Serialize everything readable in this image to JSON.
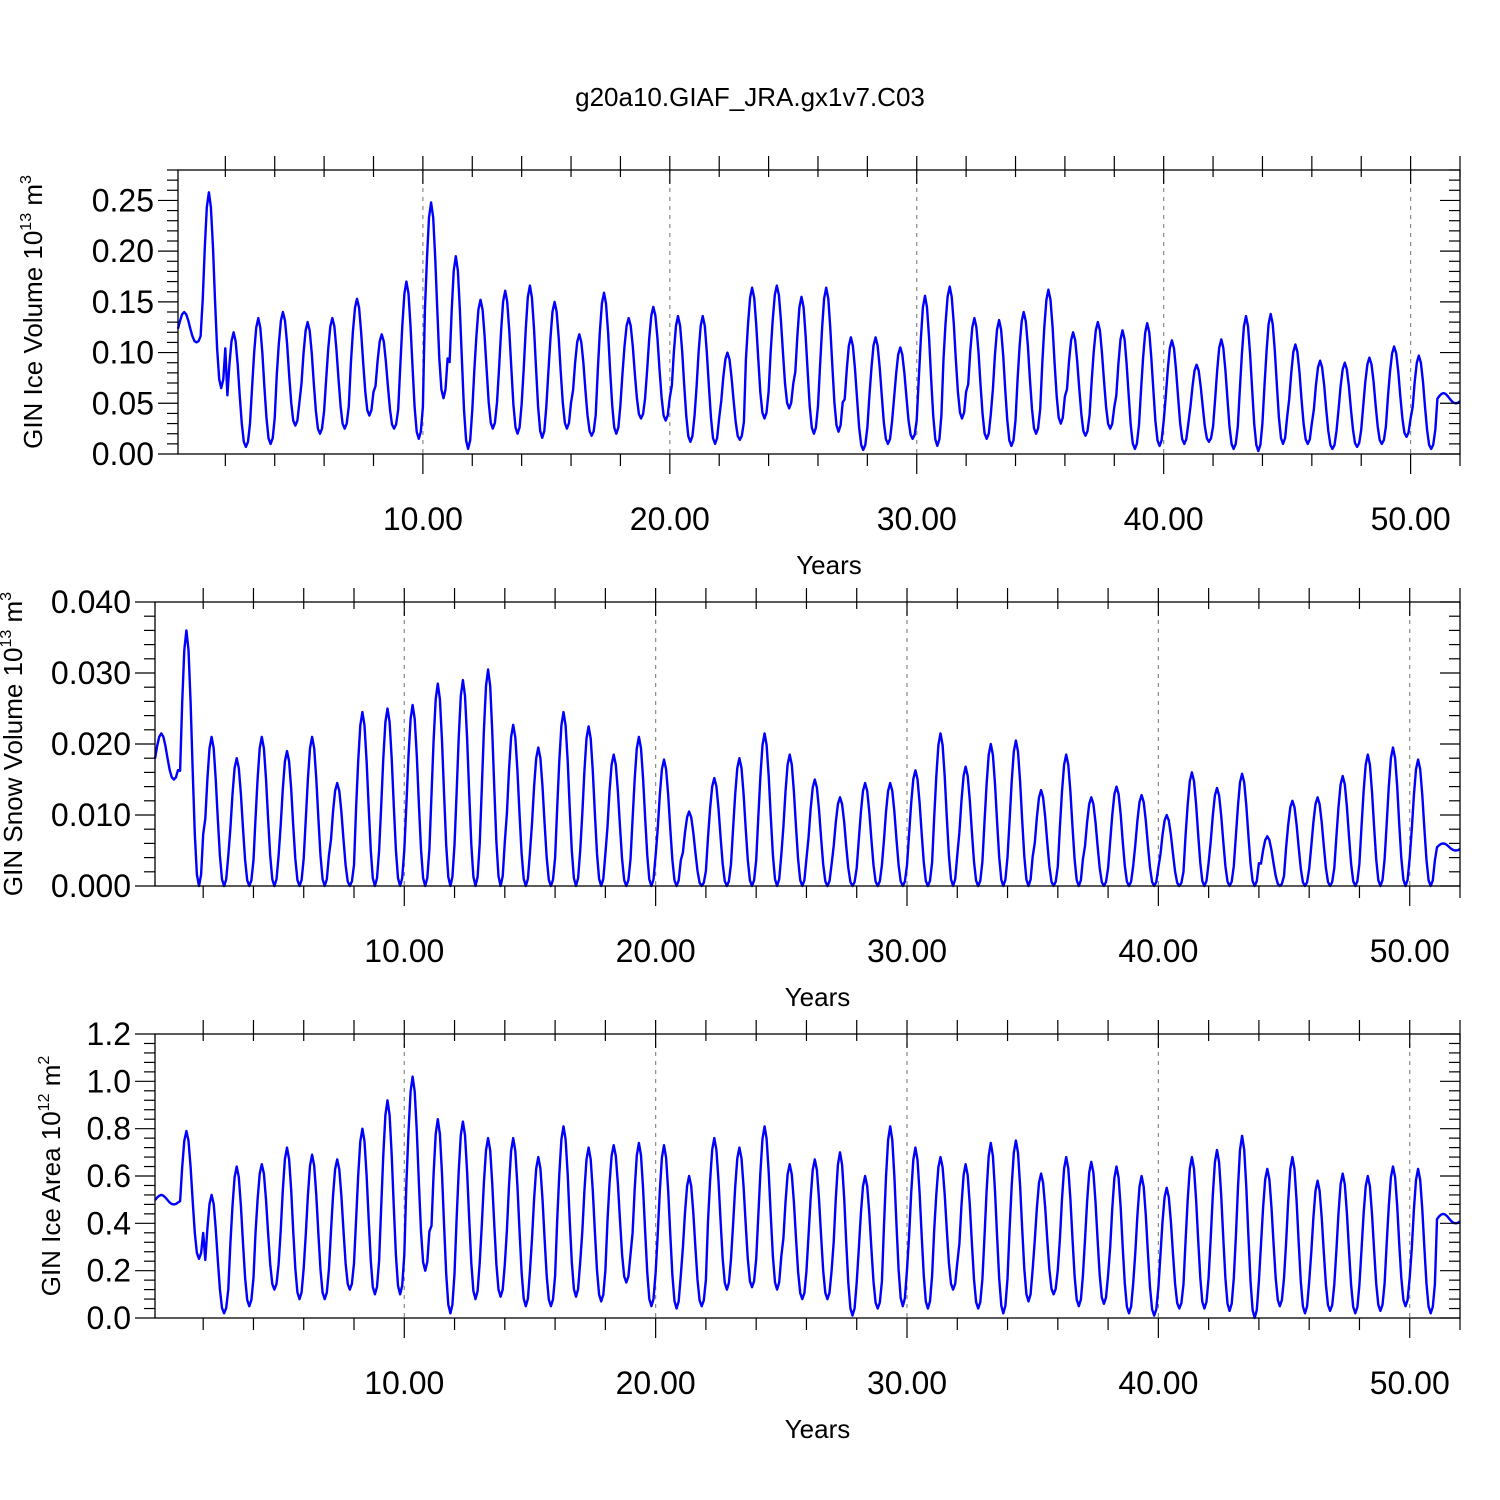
{
  "title": "g20a10.GIAF_JRA.gx1v7.C03",
  "colors": {
    "series": "#0000ff",
    "grid": "#888888"
  },
  "chart_data": [
    {
      "type": "line",
      "ylabel": {
        "main": "GIN Ice Volume 10",
        "sup": "13",
        "unit": " m",
        "unitsup": "3"
      },
      "xlabel": "Years",
      "xlim": [
        0.083,
        52.0
      ],
      "ylim": [
        0.0,
        0.28
      ],
      "xticks": [
        10,
        20,
        30,
        40,
        50
      ],
      "xtick_labels": [
        "10.00",
        "20.00",
        "30.00",
        "40.00",
        "50.00"
      ],
      "yticks": [
        0.0,
        0.05,
        0.1,
        0.15,
        0.2,
        0.25
      ],
      "ytick_labels": [
        "0.00",
        "0.05",
        "0.10",
        "0.15",
        "0.20",
        "0.25"
      ],
      "grid": "vertical-dashed",
      "yearly_max": [
        0.14,
        0.258,
        0.12,
        0.134,
        0.14,
        0.13,
        0.134,
        0.153,
        0.118,
        0.17,
        0.248,
        0.195,
        0.152,
        0.161,
        0.166,
        0.15,
        0.118,
        0.159,
        0.134,
        0.145,
        0.136,
        0.136,
        0.1,
        0.164,
        0.166,
        0.155,
        0.164,
        0.115,
        0.115,
        0.105,
        0.156,
        0.165,
        0.134,
        0.132,
        0.14,
        0.162,
        0.12,
        0.13,
        0.122,
        0.129,
        0.112,
        0.088,
        0.113,
        0.136,
        0.138,
        0.108,
        0.092,
        0.09,
        0.095,
        0.106,
        0.097,
        0.06
      ],
      "yearly_min": [
        0.11,
        0.065,
        0.007,
        0.01,
        0.028,
        0.02,
        0.025,
        0.038,
        0.025,
        0.015,
        0.055,
        0.005,
        0.025,
        0.02,
        0.016,
        0.025,
        0.018,
        0.02,
        0.035,
        0.033,
        0.012,
        0.01,
        0.014,
        0.035,
        0.045,
        0.02,
        0.022,
        0.004,
        0.01,
        0.015,
        0.008,
        0.035,
        0.015,
        0.008,
        0.02,
        0.03,
        0.018,
        0.025,
        0.005,
        0.008,
        0.01,
        0.012,
        0.005,
        0.003,
        0.01,
        0.01,
        0.005,
        0.007,
        0.01,
        0.017,
        0.005,
        0.05
      ]
    },
    {
      "type": "line",
      "ylabel": {
        "main": "GIN Snow Volume 10",
        "sup": "13",
        "unit": " m",
        "unitsup": "3"
      },
      "xlabel": "Years",
      "xlim": [
        0.083,
        52.0
      ],
      "ylim": [
        0.0,
        0.04
      ],
      "xticks": [
        10,
        20,
        30,
        40,
        50
      ],
      "xtick_labels": [
        "10.00",
        "20.00",
        "30.00",
        "40.00",
        "50.00"
      ],
      "yticks": [
        0.0,
        0.01,
        0.02,
        0.03,
        0.04
      ],
      "ytick_labels": [
        "0.000",
        "0.010",
        "0.020",
        "0.030",
        "0.040"
      ],
      "grid": "vertical-dashed",
      "yearly_max": [
        0.0215,
        0.036,
        0.021,
        0.018,
        0.021,
        0.019,
        0.021,
        0.0145,
        0.0245,
        0.025,
        0.0255,
        0.0285,
        0.029,
        0.0305,
        0.0227,
        0.0195,
        0.0245,
        0.0225,
        0.0185,
        0.021,
        0.0178,
        0.0105,
        0.0152,
        0.018,
        0.0215,
        0.0185,
        0.015,
        0.0125,
        0.0145,
        0.0145,
        0.0163,
        0.0215,
        0.0168,
        0.02,
        0.0205,
        0.0135,
        0.0185,
        0.0125,
        0.014,
        0.0128,
        0.01,
        0.016,
        0.0138,
        0.0158,
        0.007,
        0.012,
        0.0125,
        0.0155,
        0.0185,
        0.0195,
        0.0178,
        0.006
      ],
      "yearly_min": [
        0.015,
        0.0,
        0.0,
        0.0,
        0.0,
        0.0,
        0.0,
        0.0,
        0.0,
        0.0,
        0.0,
        0.0,
        0.0,
        0.0,
        0.0,
        0.0,
        0.0,
        0.0,
        0.0,
        0.0,
        0.0,
        0.0,
        0.0,
        0.0,
        0.0,
        0.0,
        0.0,
        0.0,
        0.0,
        0.0,
        0.0,
        0.0,
        0.0,
        0.0,
        0.0,
        0.0,
        0.0,
        0.0,
        0.0,
        0.0,
        0.0,
        0.0,
        0.0,
        0.0,
        0.0,
        0.0,
        0.0,
        0.0,
        0.0,
        0.0,
        0.0,
        0.005
      ]
    },
    {
      "type": "line",
      "ylabel": {
        "main": "GIN Ice Area 10",
        "sup": "12",
        "unit": " m",
        "unitsup": "2"
      },
      "xlabel": "Years",
      "xlim": [
        0.083,
        52.0
      ],
      "ylim": [
        0.0,
        1.2
      ],
      "xticks": [
        10,
        20,
        30,
        40,
        50
      ],
      "xtick_labels": [
        "10.00",
        "20.00",
        "30.00",
        "40.00",
        "50.00"
      ],
      "yticks": [
        0.0,
        0.2,
        0.4,
        0.6,
        0.8,
        1.0,
        1.2
      ],
      "ytick_labels": [
        "0.0",
        "0.2",
        "0.4",
        "0.6",
        "0.8",
        "1.0",
        "1.2"
      ],
      "grid": "vertical-dashed",
      "yearly_max": [
        0.52,
        0.79,
        0.52,
        0.64,
        0.65,
        0.72,
        0.69,
        0.67,
        0.8,
        0.92,
        1.02,
        0.84,
        0.83,
        0.76,
        0.76,
        0.68,
        0.81,
        0.72,
        0.73,
        0.74,
        0.73,
        0.6,
        0.76,
        0.72,
        0.81,
        0.65,
        0.67,
        0.7,
        0.6,
        0.81,
        0.72,
        0.68,
        0.65,
        0.74,
        0.75,
        0.61,
        0.68,
        0.66,
        0.64,
        0.6,
        0.55,
        0.68,
        0.71,
        0.77,
        0.63,
        0.68,
        0.58,
        0.61,
        0.6,
        0.64,
        0.63,
        0.44
      ],
      "yearly_min": [
        0.48,
        0.25,
        0.02,
        0.05,
        0.12,
        0.08,
        0.08,
        0.12,
        0.1,
        0.1,
        0.2,
        0.02,
        0.08,
        0.09,
        0.05,
        0.05,
        0.09,
        0.07,
        0.15,
        0.05,
        0.04,
        0.05,
        0.12,
        0.13,
        0.12,
        0.08,
        0.08,
        0.01,
        0.04,
        0.05,
        0.04,
        0.12,
        0.04,
        0.02,
        0.07,
        0.1,
        0.05,
        0.06,
        0.02,
        0.01,
        0.04,
        0.04,
        0.03,
        0.0,
        0.05,
        0.02,
        0.03,
        0.02,
        0.03,
        0.05,
        0.02,
        0.4
      ]
    }
  ]
}
